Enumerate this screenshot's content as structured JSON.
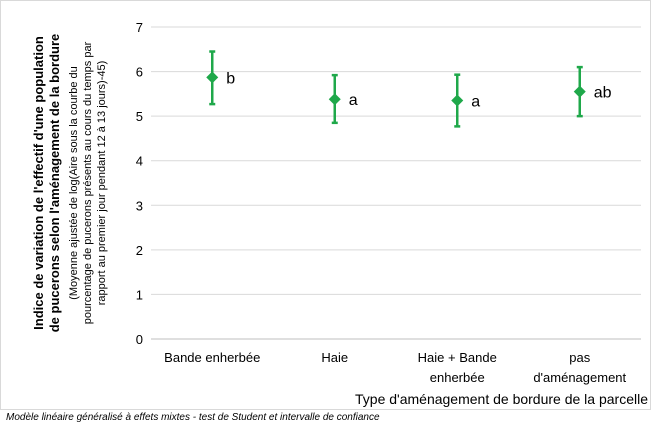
{
  "chart_data": {
    "type": "scatter",
    "title": "",
    "xlabel": "Type d'aménagement de bordure de la parcelle",
    "ylabel_lines": [
      "Indice de variation de l'effectif d'une population",
      "de pucerons selon l'aménagement de la bordure",
      "(Moyenne ajustée de  log(Aire sous la courbe du",
      "pourcentage de pucerons présents au cours du temps par",
      "rapport au premier jour pendant 12 à 13 jours)-45)"
    ],
    "ylim": [
      0,
      7
    ],
    "yticks": [
      "0",
      "1",
      "2",
      "3",
      "4",
      "5",
      "6",
      "7"
    ],
    "grid": "horizontal",
    "legend": "none",
    "marker_color": "#1fa84a",
    "categories": [
      [
        "Bande enherbée"
      ],
      [
        "Haie"
      ],
      [
        "Haie + Bande",
        "enherbée"
      ],
      [
        "pas",
        "d'aménagement"
      ]
    ],
    "points": [
      {
        "y": 5.87,
        "low": 5.27,
        "high": 6.45,
        "group": "b"
      },
      {
        "y": 5.38,
        "low": 4.85,
        "high": 5.92,
        "group": "a"
      },
      {
        "y": 5.35,
        "low": 4.77,
        "high": 5.93,
        "group": "a"
      },
      {
        "y": 5.55,
        "low": 5.0,
        "high": 6.1,
        "group": "ab"
      }
    ]
  },
  "footnote": "Modèle linéaire généralisé à effets mixtes - test de Student et intervalle de confiance"
}
